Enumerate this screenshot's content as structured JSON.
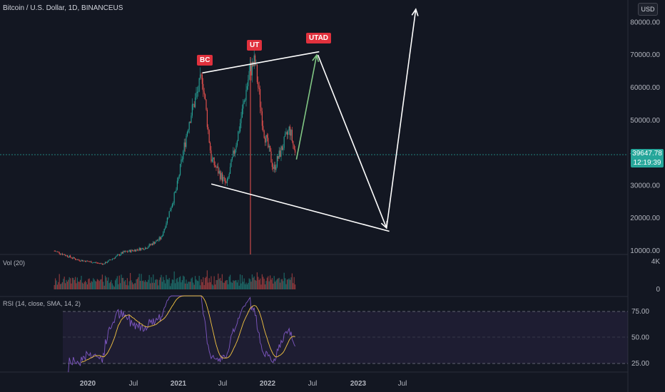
{
  "header": {
    "symbol": "Bitcoin / U.S. Dollar, 1D, BINANCEUS",
    "currency": "USD"
  },
  "price_tag": {
    "value": "39647.78",
    "countdown": "12:19:39"
  },
  "panes": {
    "volume_label": "Vol (20)",
    "rsi_label": "RSI (14, close, SMA, 14, 2)"
  },
  "colors": {
    "background": "#131722",
    "up_candle": "#26a69a",
    "down_candle": "#ef5350",
    "rsi_line": "#7e57c2",
    "rsi_sma": "#f5c542",
    "label_bg": "#e0313d",
    "projection_arrow": "#ffffff",
    "next_leg_arrow": "#81c784"
  },
  "chart_data": {
    "type": "candlestick",
    "price_axis": {
      "ticks": [
        "10000.00",
        "20000.00",
        "30000.00",
        "40000.00",
        "50000.00",
        "60000.00",
        "70000.00",
        "80000.00"
      ],
      "range": [
        8000,
        85000
      ]
    },
    "volume_axis": {
      "ticks": [
        "0",
        "4K"
      ]
    },
    "rsi_axis": {
      "ticks": [
        "25.00",
        "50.00",
        "75.00"
      ],
      "range": [
        15,
        90
      ]
    },
    "x_axis": {
      "ticks": [
        "2020",
        "Jul",
        "2021",
        "Jul",
        "2022",
        "Jul",
        "2023",
        "Jul"
      ]
    },
    "approx_close_path": [
      [
        "2019-09-01",
        10000
      ],
      [
        "2019-12-01",
        7300
      ],
      [
        "2020-03-15",
        6000
      ],
      [
        "2020-06-01",
        9500
      ],
      [
        "2020-09-01",
        11000
      ],
      [
        "2020-11-01",
        14000
      ],
      [
        "2021-01-01",
        29000
      ],
      [
        "2021-02-20",
        50000
      ],
      [
        "2021-04-14",
        63500
      ],
      [
        "2021-05-20",
        38000
      ],
      [
        "2021-07-20",
        30000
      ],
      [
        "2021-09-07",
        47000
      ],
      [
        "2021-10-20",
        65000
      ],
      [
        "2021-11-10",
        68000
      ],
      [
        "2021-12-15",
        47000
      ],
      [
        "2022-01-24",
        35000
      ],
      [
        "2022-03-29",
        47500
      ],
      [
        "2022-04-20",
        39647.78
      ]
    ],
    "annotations": [
      {
        "text": "BC",
        "date": "2021-04-14",
        "price": 63500
      },
      {
        "text": "UT",
        "date": "2021-11-10",
        "price": 69000
      },
      {
        "text": "UTAD",
        "date": "2022-07-20",
        "price": 71000
      }
    ],
    "trendlines": [
      {
        "from": [
          "2021-04-14",
          64500
        ],
        "to": [
          "2022-07-25",
          71000
        ],
        "kind": "upper"
      },
      {
        "from": [
          "2021-05-20",
          30500
        ],
        "to": [
          "2023-05-01",
          16000
        ],
        "kind": "lower"
      }
    ],
    "projection": [
      {
        "from": [
          "2022-04-25",
          38000
        ],
        "to": [
          "2022-07-15",
          70000
        ],
        "color": "#81c784"
      },
      {
        "from": [
          "2022-07-20",
          70000
        ],
        "to": [
          "2023-04-20",
          17000
        ],
        "color": "#ffffff"
      },
      {
        "from": [
          "2023-04-20",
          17000
        ],
        "to": [
          "2023-08-15",
          84000
        ],
        "color": "#ffffff"
      }
    ]
  }
}
